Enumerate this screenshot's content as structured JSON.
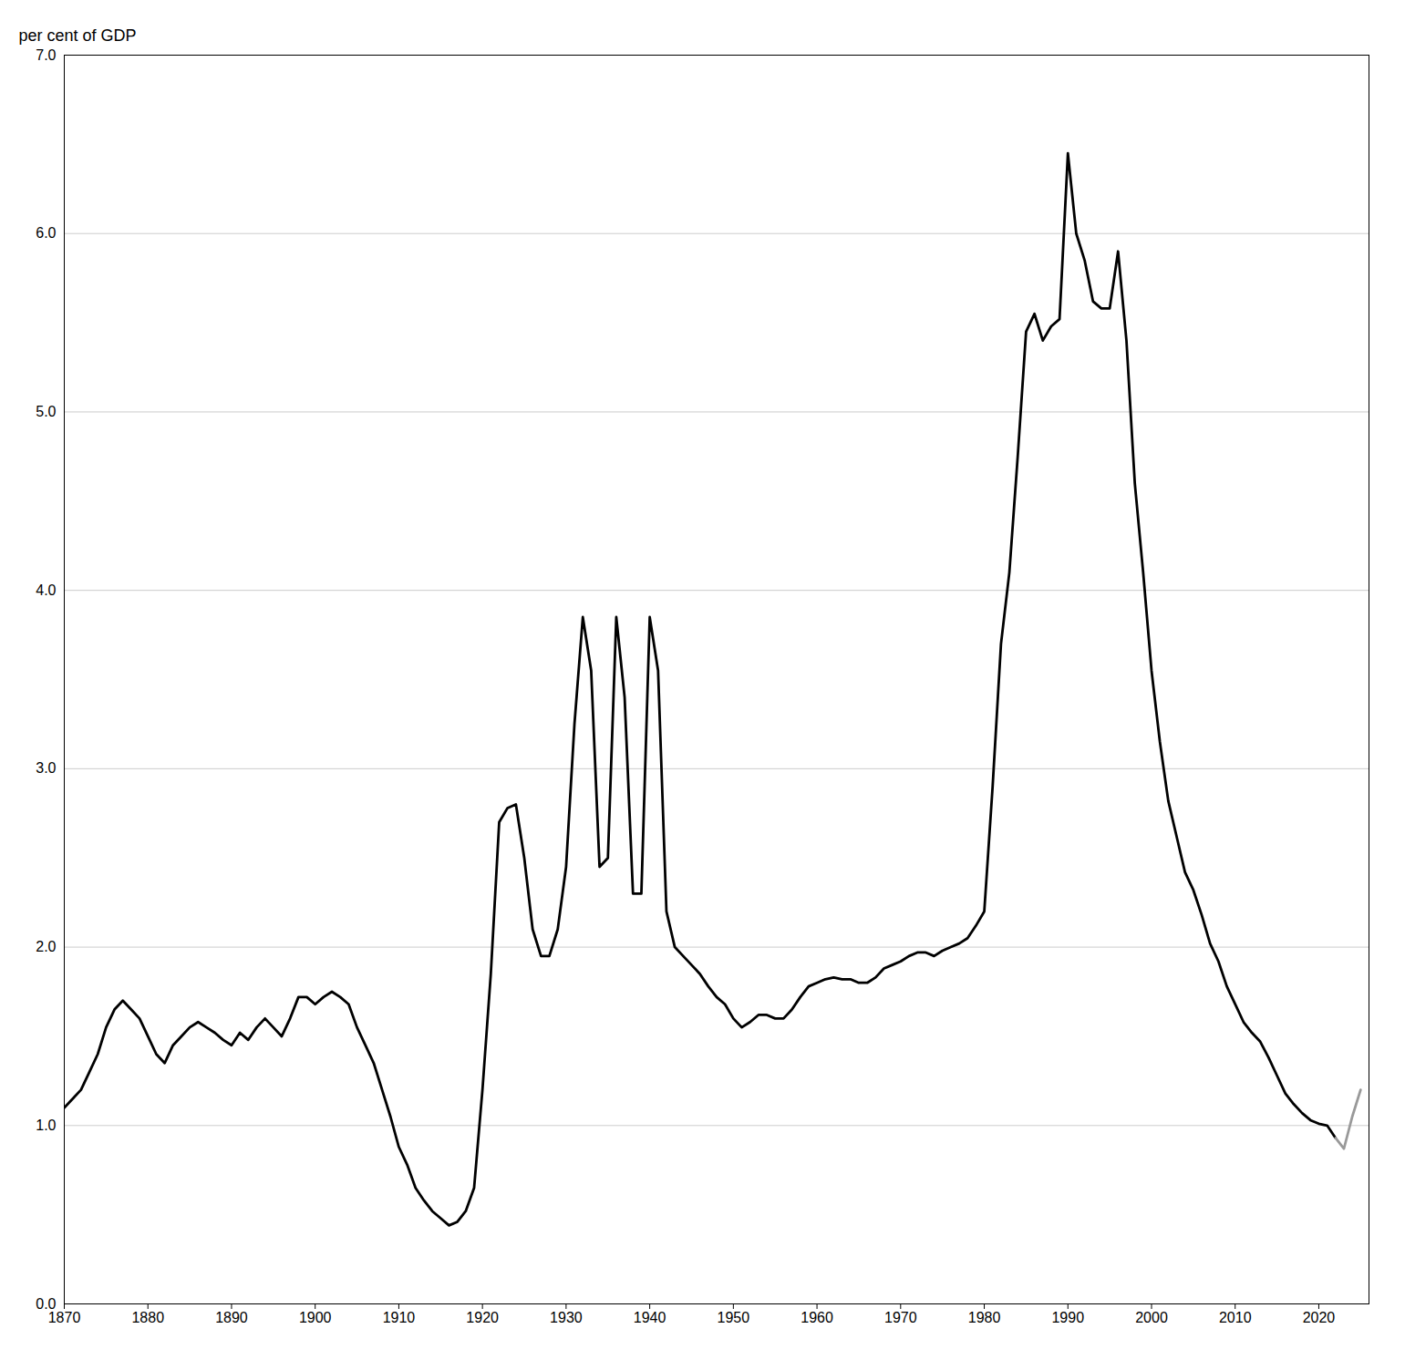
{
  "chart_data": {
    "type": "line",
    "y_label": "per cent of GDP",
    "x": [
      1870,
      1871,
      1872,
      1873,
      1874,
      1875,
      1876,
      1877,
      1878,
      1879,
      1880,
      1881,
      1882,
      1883,
      1884,
      1885,
      1886,
      1887,
      1888,
      1889,
      1890,
      1891,
      1892,
      1893,
      1894,
      1895,
      1896,
      1897,
      1898,
      1899,
      1900,
      1901,
      1902,
      1903,
      1904,
      1905,
      1906,
      1907,
      1908,
      1909,
      1910,
      1911,
      1912,
      1913,
      1914,
      1915,
      1916,
      1917,
      1918,
      1919,
      1920,
      1921,
      1922,
      1923,
      1924,
      1925,
      1926,
      1927,
      1928,
      1929,
      1930,
      1931,
      1932,
      1933,
      1934,
      1935,
      1936,
      1937,
      1938,
      1939,
      1940,
      1941,
      1942,
      1943,
      1944,
      1945,
      1946,
      1947,
      1948,
      1949,
      1950,
      1951,
      1952,
      1953,
      1954,
      1955,
      1956,
      1957,
      1958,
      1959,
      1960,
      1961,
      1962,
      1963,
      1964,
      1965,
      1966,
      1967,
      1968,
      1969,
      1970,
      1971,
      1972,
      1973,
      1974,
      1975,
      1976,
      1977,
      1978,
      1979,
      1980,
      1981,
      1982,
      1983,
      1984,
      1985,
      1986,
      1987,
      1988,
      1989,
      1990,
      1991,
      1992,
      1993,
      1994,
      1995,
      1996,
      1997,
      1998,
      1999,
      2000,
      2001,
      2002,
      2003,
      2004,
      2005,
      2006,
      2007,
      2008,
      2009,
      2010,
      2011,
      2012,
      2013,
      2014,
      2015,
      2016,
      2017,
      2018,
      2019,
      2020,
      2021,
      2022,
      2023,
      2024,
      2025
    ],
    "series": [
      {
        "color": "#000000",
        "values": [
          1.1,
          1.15,
          1.2,
          1.3,
          1.4,
          1.55,
          1.65,
          1.7,
          1.65,
          1.6,
          1.5,
          1.4,
          1.35,
          1.45,
          1.5,
          1.55,
          1.58,
          1.55,
          1.52,
          1.48,
          1.45,
          1.52,
          1.48,
          1.55,
          1.6,
          1.55,
          1.5,
          1.6,
          1.72,
          1.72,
          1.68,
          1.72,
          1.75,
          1.72,
          1.68,
          1.55,
          1.45,
          1.35,
          1.2,
          1.05,
          0.88,
          0.78,
          0.65,
          0.58,
          0.52,
          0.48,
          0.44,
          0.46,
          0.52,
          0.65,
          1.2,
          1.85,
          2.7,
          2.78,
          2.8,
          2.5,
          2.1,
          1.95,
          1.95,
          2.1,
          2.45,
          3.25,
          3.85,
          3.55,
          2.45,
          2.5,
          3.85,
          3.4,
          2.3,
          2.3,
          3.85,
          3.55,
          2.2,
          2.0,
          1.95,
          1.9,
          1.85,
          1.78,
          1.72,
          1.68,
          1.6,
          1.55,
          1.58,
          1.62,
          1.62,
          1.6,
          1.6,
          1.65,
          1.72,
          1.78,
          1.8,
          1.82,
          1.83,
          1.82,
          1.82,
          1.8,
          1.8,
          1.83,
          1.88,
          1.9,
          1.92,
          1.95,
          1.97,
          1.97,
          1.95,
          1.98,
          2.0,
          2.02,
          2.05,
          2.12,
          2.2,
          2.9,
          3.7,
          4.1,
          4.75,
          5.45,
          5.55,
          5.4,
          5.48,
          5.52,
          6.45,
          6.0,
          5.85,
          5.62,
          5.58,
          5.58,
          5.9,
          5.4,
          4.6,
          4.1,
          3.55,
          3.15,
          2.82,
          2.62,
          2.42,
          2.32,
          2.18,
          2.02,
          1.92,
          1.78,
          1.68,
          1.58,
          1.52,
          1.47,
          1.38,
          1.28,
          1.18,
          1.12,
          1.07,
          1.03,
          1.01,
          1.0,
          0.93,
          null,
          null,
          null
        ]
      },
      {
        "color": "#999999",
        "values": [
          null,
          null,
          null,
          null,
          null,
          null,
          null,
          null,
          null,
          null,
          null,
          null,
          null,
          null,
          null,
          null,
          null,
          null,
          null,
          null,
          null,
          null,
          null,
          null,
          null,
          null,
          null,
          null,
          null,
          null,
          null,
          null,
          null,
          null,
          null,
          null,
          null,
          null,
          null,
          null,
          null,
          null,
          null,
          null,
          null,
          null,
          null,
          null,
          null,
          null,
          null,
          null,
          null,
          null,
          null,
          null,
          null,
          null,
          null,
          null,
          null,
          null,
          null,
          null,
          null,
          null,
          null,
          null,
          null,
          null,
          null,
          null,
          null,
          null,
          null,
          null,
          null,
          null,
          null,
          null,
          null,
          null,
          null,
          null,
          null,
          null,
          null,
          null,
          null,
          null,
          null,
          null,
          null,
          null,
          null,
          null,
          null,
          null,
          null,
          null,
          null,
          null,
          null,
          null,
          null,
          null,
          null,
          null,
          null,
          null,
          null,
          null,
          null,
          null,
          null,
          null,
          null,
          null,
          null,
          null,
          null,
          null,
          null,
          null,
          null,
          null,
          null,
          null,
          null,
          null,
          null,
          null,
          null,
          null,
          null,
          null,
          null,
          null,
          null,
          null,
          null,
          null,
          null,
          null,
          null,
          null,
          null,
          null,
          null,
          null,
          null,
          null,
          0.93,
          0.87,
          1.05,
          1.2
        ]
      }
    ],
    "xlim": [
      1870,
      2026
    ],
    "xticks": [
      1870,
      1880,
      1890,
      1900,
      1910,
      1920,
      1930,
      1940,
      1950,
      1960,
      1970,
      1980,
      1990,
      2000,
      2010,
      2020
    ],
    "ylim": [
      0.0,
      7.0
    ],
    "yticks": [
      {
        "value": 0.0,
        "label": "0.0"
      },
      {
        "value": 1.0,
        "label": "1.0"
      },
      {
        "value": 2.0,
        "label": "2.0"
      },
      {
        "value": 3.0,
        "label": "3.0"
      },
      {
        "value": 4.0,
        "label": "4.0"
      },
      {
        "value": 5.0,
        "label": "5.0"
      },
      {
        "value": 6.0,
        "label": "6.0"
      },
      {
        "value": 7.0,
        "label": "7.0"
      }
    ],
    "grid": true
  }
}
